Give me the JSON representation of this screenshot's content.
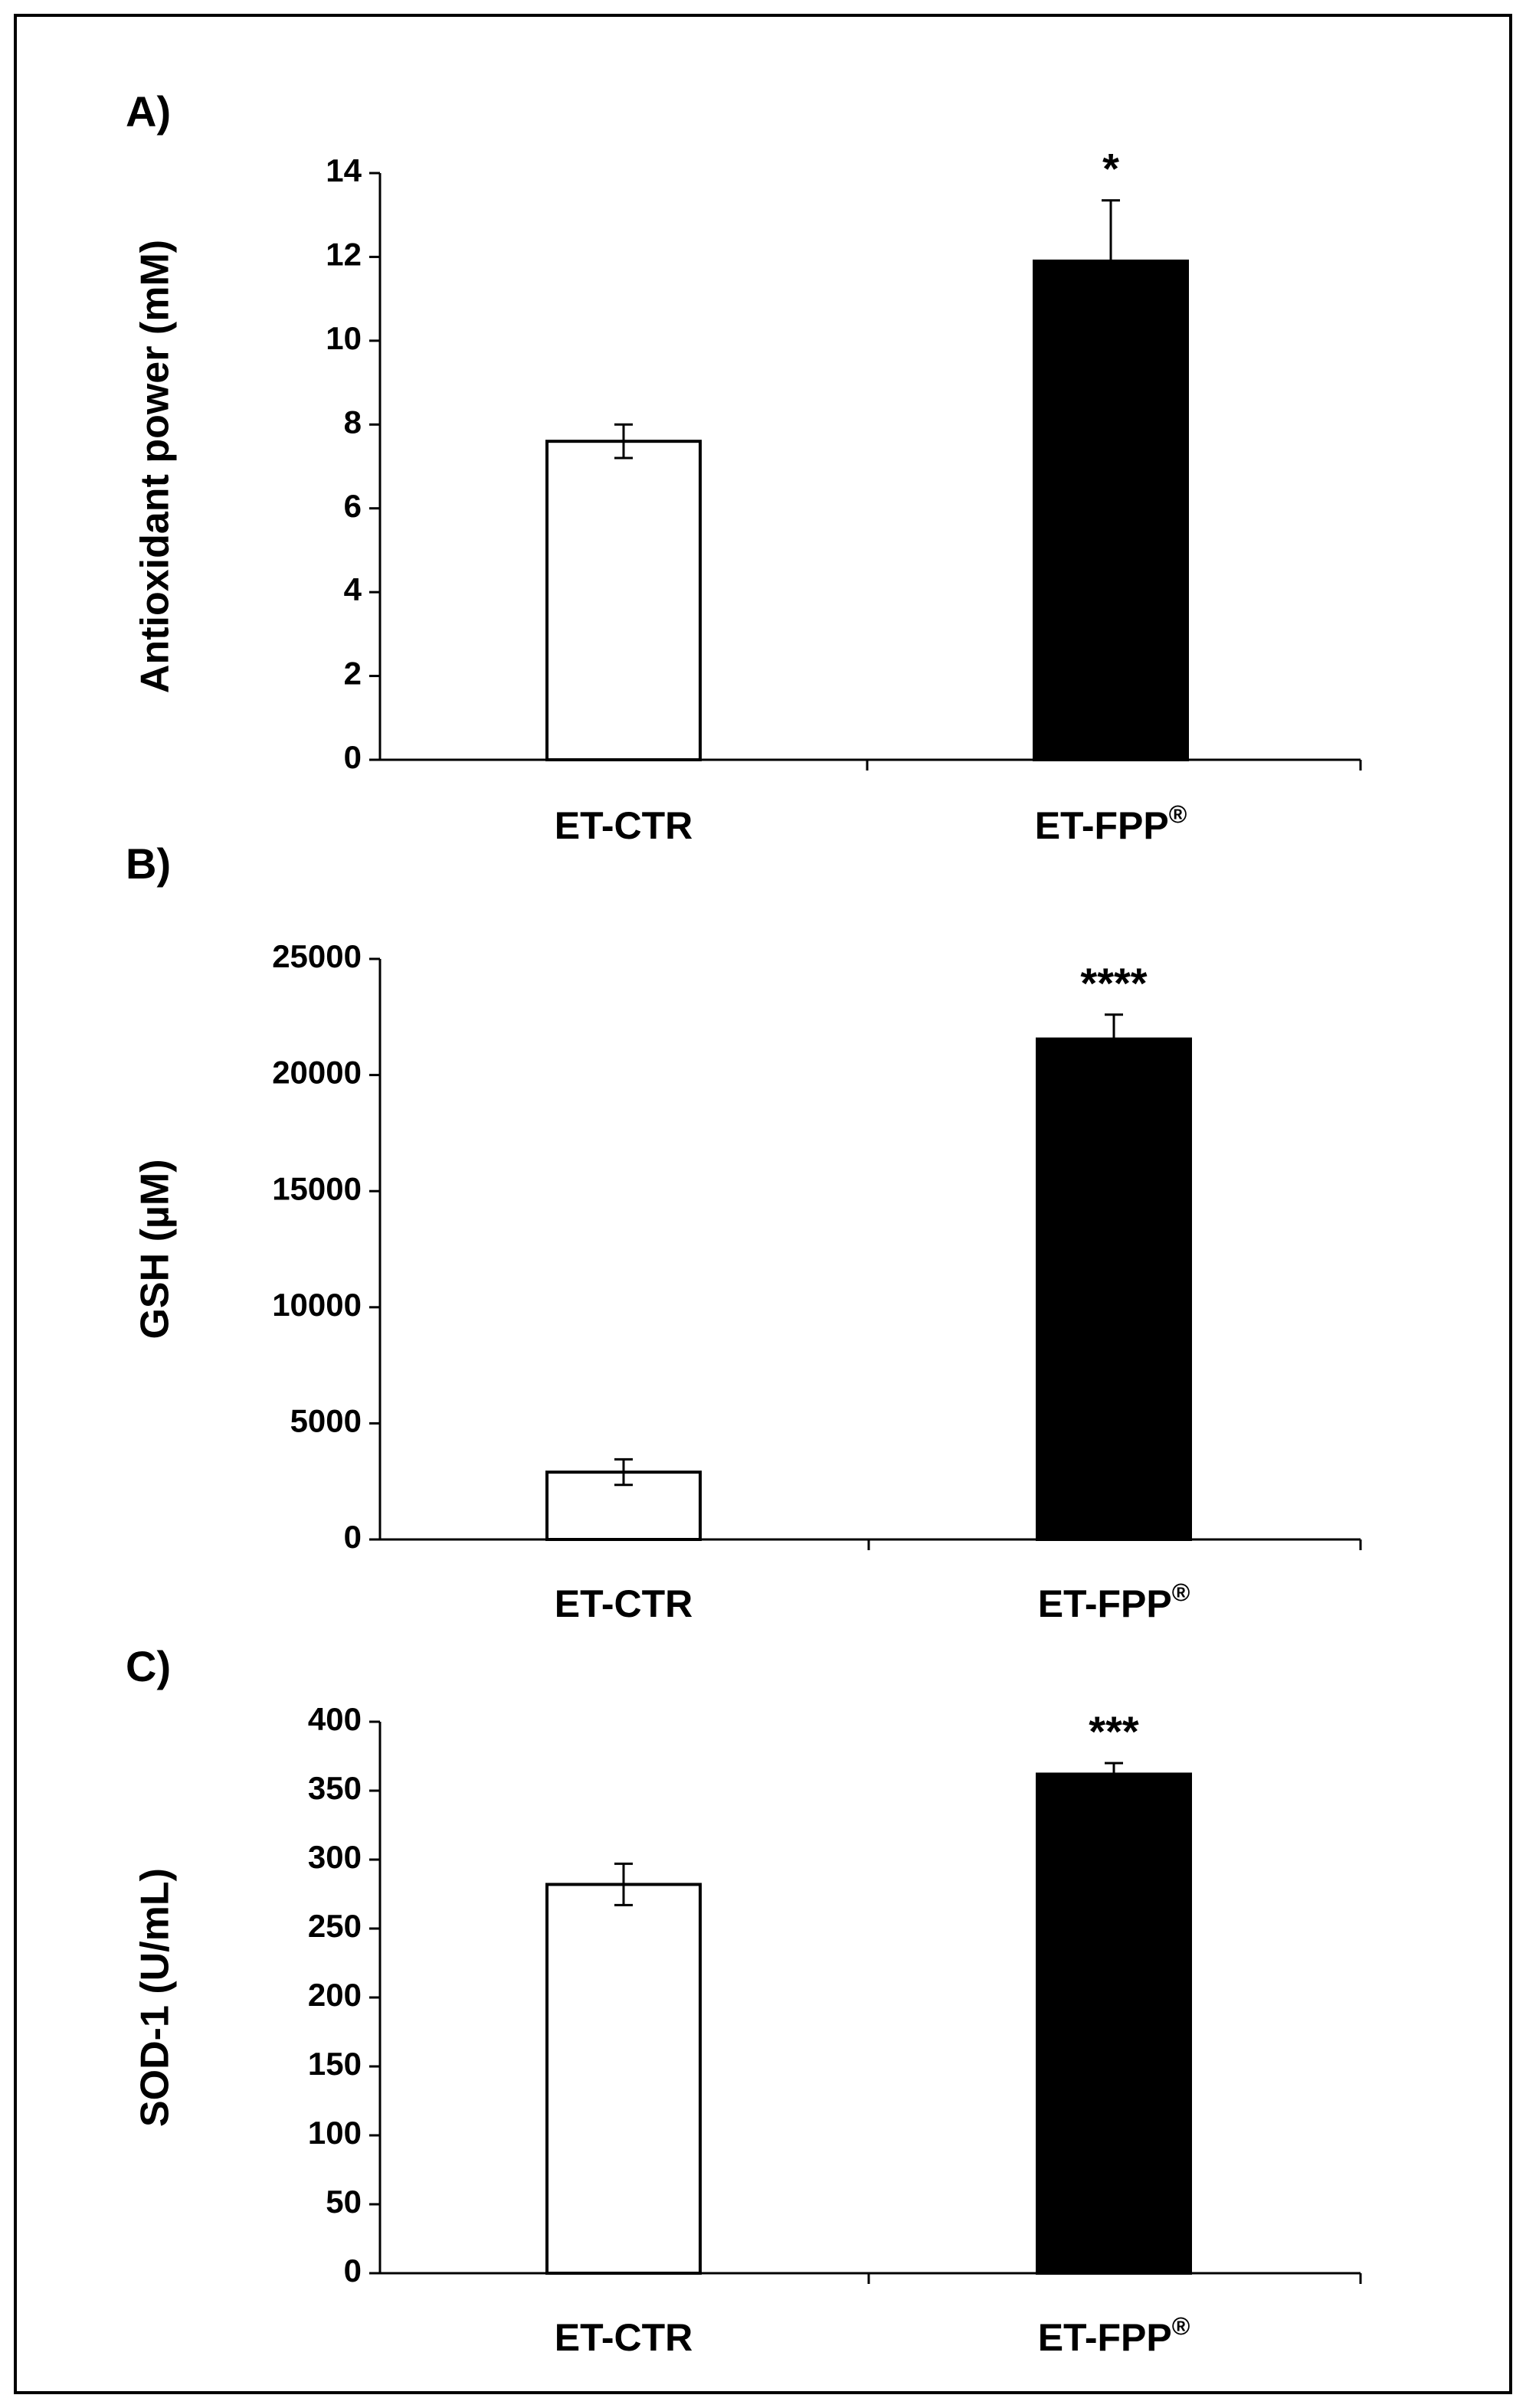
{
  "chart_data": [
    {
      "type": "bar",
      "panel_label": "A)",
      "categories": [
        "ET-CTR",
        "ET-FPP"
      ],
      "category_superscripts": [
        "",
        "®"
      ],
      "values": [
        7.6,
        11.9
      ],
      "errors": [
        0.4,
        1.45
      ],
      "significance": [
        "",
        "*"
      ],
      "bar_colors": [
        "#ffffff",
        "#000000"
      ],
      "ylabel": "Antioxidant power (mM)",
      "ylim": [
        0,
        14
      ],
      "yticks": [
        0,
        2,
        4,
        6,
        8,
        10,
        12,
        14
      ],
      "grid": false
    },
    {
      "type": "bar",
      "panel_label": "B)",
      "categories": [
        "ET-CTR",
        "ET-FPP"
      ],
      "category_superscripts": [
        "",
        "®"
      ],
      "values": [
        2900,
        21550
      ],
      "errors": [
        550,
        1050
      ],
      "significance": [
        "",
        "****"
      ],
      "bar_colors": [
        "#ffffff",
        "#000000"
      ],
      "ylabel": "GSH (µM)",
      "ylim": [
        0,
        25000
      ],
      "yticks": [
        0,
        5000,
        10000,
        15000,
        20000,
        25000
      ],
      "grid": false
    },
    {
      "type": "bar",
      "panel_label": "C)",
      "categories": [
        "ET-CTR",
        "ET-FPP"
      ],
      "category_superscripts": [
        "",
        "®"
      ],
      "values": [
        282,
        362
      ],
      "errors": [
        15,
        8
      ],
      "significance": [
        "",
        "***"
      ],
      "bar_colors": [
        "#ffffff",
        "#000000"
      ],
      "ylabel": "SOD-1 (U/mL)",
      "ylim": [
        0,
        400
      ],
      "yticks": [
        0,
        50,
        100,
        150,
        200,
        250,
        300,
        350,
        400
      ],
      "grid": false
    }
  ]
}
